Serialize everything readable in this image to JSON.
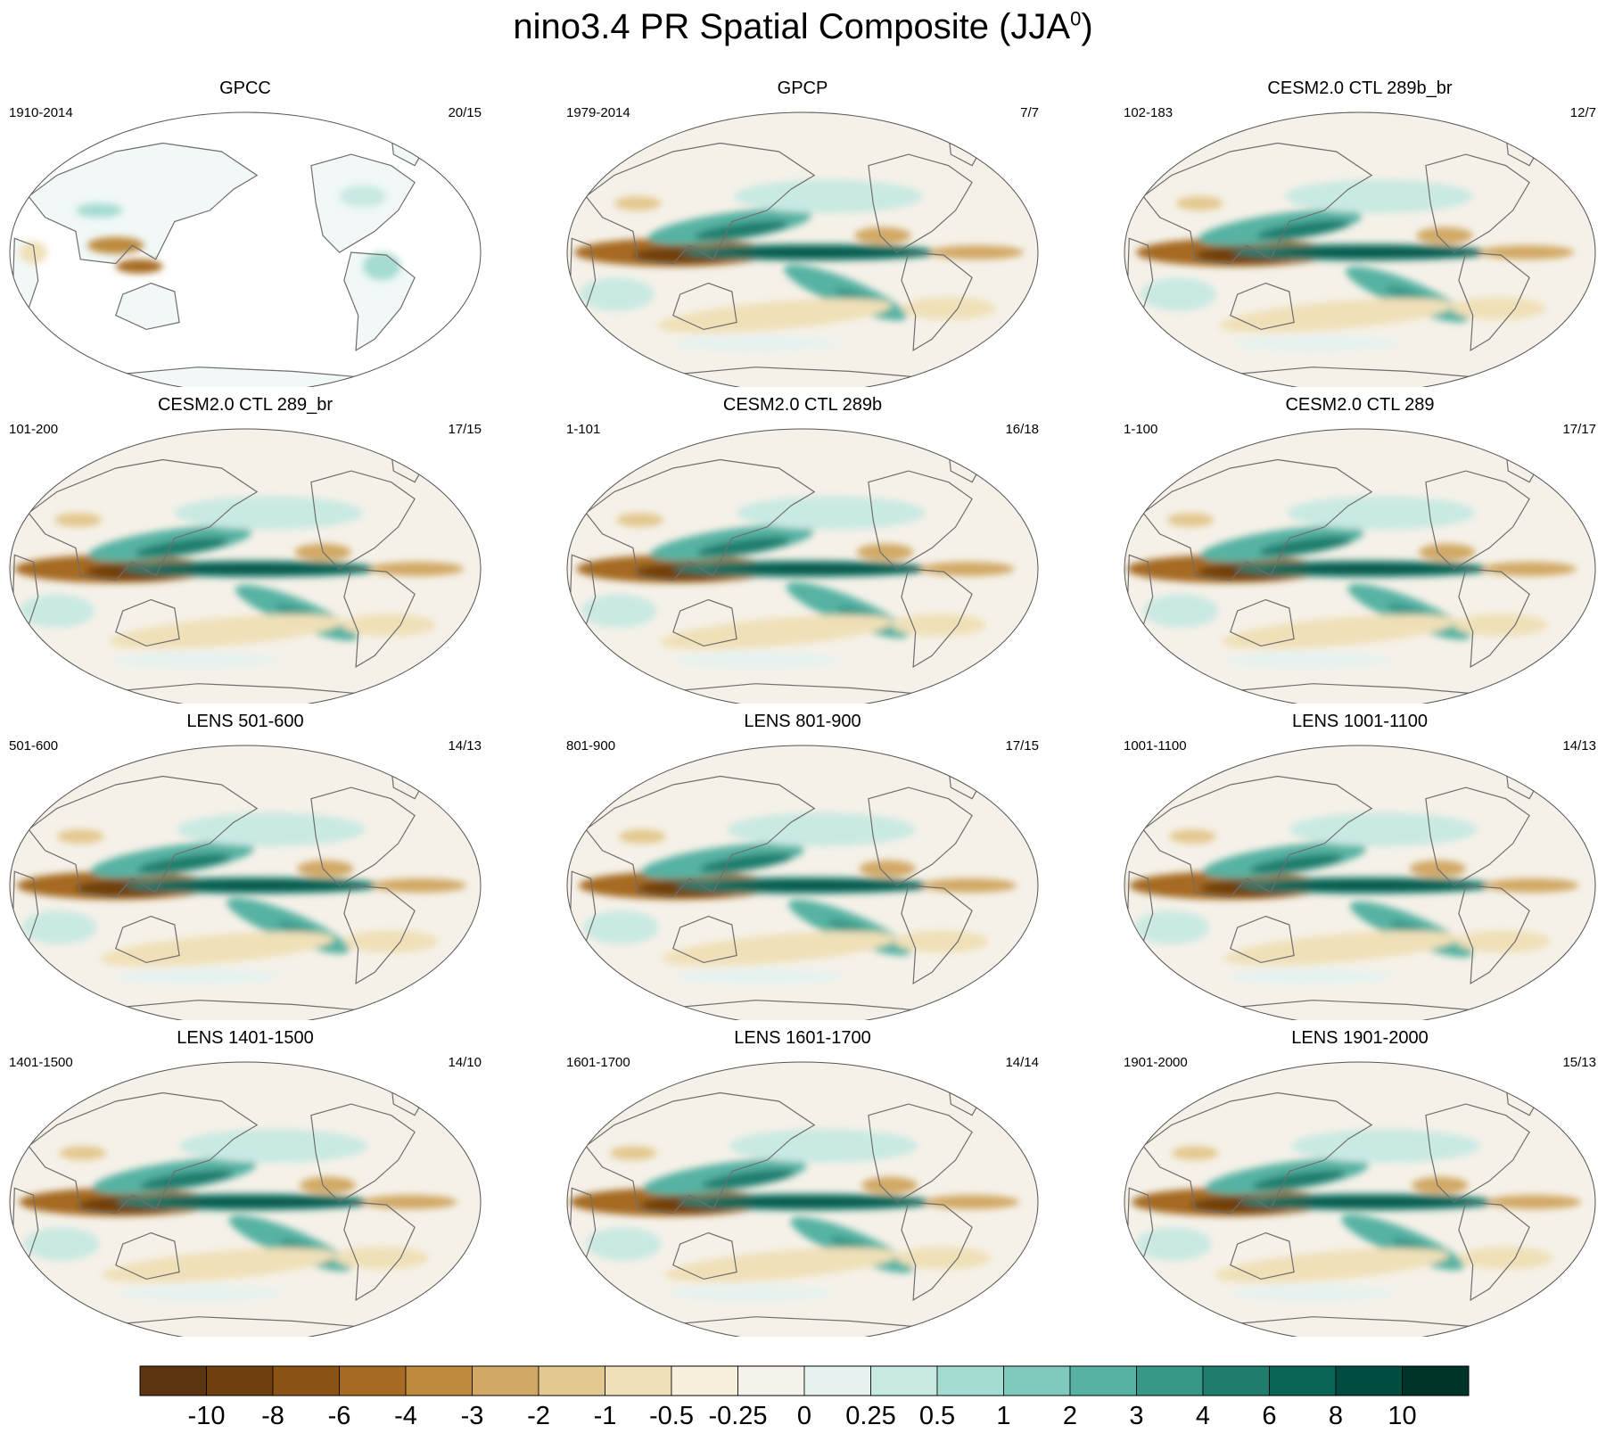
{
  "title": {
    "main": "nino3.4 PR Spatial Composite (JJA",
    "sup": "0",
    "close": ")"
  },
  "chart_data": [
    {
      "type": "heatmap",
      "title": "GPCC",
      "period": "1910-2014",
      "counts": "20/15",
      "land_only": true
    },
    {
      "type": "heatmap",
      "title": "GPCP",
      "period": "1979-2014",
      "counts": "7/7",
      "land_only": false
    },
    {
      "type": "heatmap",
      "title": "CESM2.0 CTL 289b_br",
      "period": "102-183",
      "counts": "12/7",
      "land_only": false
    },
    {
      "type": "heatmap",
      "title": "CESM2.0 CTL 289_br",
      "period": "101-200",
      "counts": "17/15",
      "land_only": false
    },
    {
      "type": "heatmap",
      "title": "CESM2.0 CTL 289b",
      "period": "1-101",
      "counts": "16/18",
      "land_only": false
    },
    {
      "type": "heatmap",
      "title": "CESM2.0 CTL 289",
      "period": "1-100",
      "counts": "17/17",
      "land_only": false
    },
    {
      "type": "heatmap",
      "title": "LENS 501-600",
      "period": "501-600",
      "counts": "14/13",
      "land_only": false
    },
    {
      "type": "heatmap",
      "title": "LENS 801-900",
      "period": "801-900",
      "counts": "17/15",
      "land_only": false
    },
    {
      "type": "heatmap",
      "title": "LENS 1001-1100",
      "period": "1001-1100",
      "counts": "14/13",
      "land_only": false
    },
    {
      "type": "heatmap",
      "title": "LENS 1401-1500",
      "period": "1401-1500",
      "counts": "14/10",
      "land_only": false
    },
    {
      "type": "heatmap",
      "title": "LENS 1601-1700",
      "period": "1601-1700",
      "counts": "14/14",
      "land_only": false
    },
    {
      "type": "heatmap",
      "title": "LENS 1901-2000",
      "period": "1901-2000",
      "counts": "15/13",
      "land_only": false
    }
  ],
  "colorbar": {
    "labels": [
      "-10",
      "-8",
      "-6",
      "-4",
      "-3",
      "-2",
      "-1",
      "-0.5",
      "-0.25",
      "0",
      "0.25",
      "0.5",
      "1",
      "2",
      "3",
      "4",
      "6",
      "8",
      "10"
    ],
    "colors": [
      "#5a3510",
      "#6f400f",
      "#8a5214",
      "#a66a22",
      "#bd8a3e",
      "#d1a865",
      "#e3c88f",
      "#f0e0b8",
      "#f7f0dc",
      "#f5f2ec",
      "#e6f2f0",
      "#c9e9e3",
      "#a5dcd2",
      "#7fcabd",
      "#57b2a3",
      "#379888",
      "#1e7d6d",
      "#0a6456",
      "#004c40",
      "#003328"
    ]
  },
  "colors": {
    "coast": "#6e6e6e",
    "land_blank": "#ffffff",
    "neutral": "#f5f1e8"
  }
}
